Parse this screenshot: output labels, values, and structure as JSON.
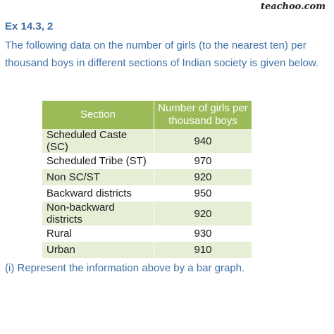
{
  "brand": "teachoo.com",
  "exercise": "Ex 14.3, 2",
  "problem": "The following data on the number of girls (to the nearest ten) per thousand boys in different sections of Indian society is given below.",
  "table": {
    "headers": {
      "section": "Section",
      "value_line1": "Number of girls per",
      "value_line2": "thousand boys"
    },
    "rows": [
      {
        "section": "Scheduled Caste (SC)",
        "value": "940"
      },
      {
        "section": "Scheduled Tribe (ST)",
        "value": "970"
      },
      {
        "section": "Non SC/ST",
        "value": "920"
      },
      {
        "section": "Backward districts",
        "value": "950"
      },
      {
        "section": "Non-backward districts",
        "value": "920"
      },
      {
        "section": "Rural",
        "value": "930"
      },
      {
        "section": "Urban",
        "value": "910"
      }
    ]
  },
  "question_part": "(i) Represent the information above by a bar graph.",
  "colors": {
    "heading_text": "#3f6fa5",
    "table_header_bg": "#9bbb59",
    "table_band_bg": "#e6eed5"
  }
}
